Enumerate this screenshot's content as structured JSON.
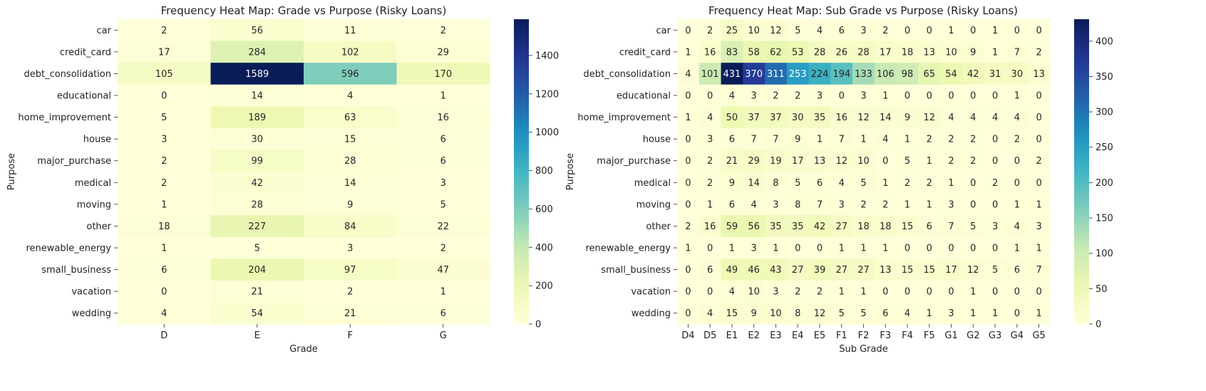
{
  "chart_data": [
    {
      "type": "heatmap",
      "title": "Frequency Heat Map: Grade vs Purpose (Risky Loans)",
      "xlabel": "Grade",
      "ylabel": "Purpose",
      "x": [
        "D",
        "E",
        "F",
        "G"
      ],
      "y": [
        "car",
        "credit_card",
        "debt_consolidation",
        "educational",
        "home_improvement",
        "house",
        "major_purchase",
        "medical",
        "moving",
        "other",
        "renewable_energy",
        "small_business",
        "vacation",
        "wedding"
      ],
      "values": [
        [
          2,
          56,
          11,
          2
        ],
        [
          17,
          284,
          102,
          29
        ],
        [
          105,
          1589,
          596,
          170
        ],
        [
          0,
          14,
          4,
          1
        ],
        [
          5,
          189,
          63,
          16
        ],
        [
          3,
          30,
          15,
          6
        ],
        [
          2,
          99,
          28,
          6
        ],
        [
          2,
          42,
          14,
          3
        ],
        [
          1,
          28,
          9,
          5
        ],
        [
          18,
          227,
          84,
          22
        ],
        [
          1,
          5,
          3,
          2
        ],
        [
          6,
          204,
          97,
          47
        ],
        [
          0,
          21,
          2,
          1
        ],
        [
          4,
          54,
          21,
          6
        ]
      ],
      "vmin": 0,
      "vmax": 1589,
      "colorbar_ticks": [
        0,
        200,
        400,
        600,
        800,
        1000,
        1200,
        1400
      ],
      "colormap": "YlGnBu"
    },
    {
      "type": "heatmap",
      "title": "Frequency Heat Map: Sub Grade vs Purpose (Risky Loans)",
      "xlabel": "Sub Grade",
      "ylabel": "Purpose",
      "x": [
        "D4",
        "D5",
        "E1",
        "E2",
        "E3",
        "E4",
        "E5",
        "F1",
        "F2",
        "F3",
        "F4",
        "F5",
        "G1",
        "G2",
        "G3",
        "G4",
        "G5"
      ],
      "y": [
        "car",
        "credit_card",
        "debt_consolidation",
        "educational",
        "home_improvement",
        "house",
        "major_purchase",
        "medical",
        "moving",
        "other",
        "renewable_energy",
        "small_business",
        "vacation",
        "wedding"
      ],
      "values": [
        [
          0,
          2,
          25,
          10,
          12,
          5,
          4,
          6,
          3,
          2,
          0,
          0,
          1,
          0,
          1,
          0,
          0
        ],
        [
          1,
          16,
          83,
          58,
          62,
          53,
          28,
          26,
          28,
          17,
          18,
          13,
          10,
          9,
          1,
          7,
          2
        ],
        [
          4,
          101,
          431,
          370,
          311,
          253,
          224,
          194,
          133,
          106,
          98,
          65,
          54,
          42,
          31,
          30,
          13
        ],
        [
          0,
          0,
          4,
          3,
          2,
          2,
          3,
          0,
          3,
          1,
          0,
          0,
          0,
          0,
          0,
          1,
          0
        ],
        [
          1,
          4,
          50,
          37,
          37,
          30,
          35,
          16,
          12,
          14,
          9,
          12,
          4,
          4,
          4,
          4,
          0
        ],
        [
          0,
          3,
          6,
          7,
          7,
          9,
          1,
          7,
          1,
          4,
          1,
          2,
          2,
          2,
          0,
          2,
          0
        ],
        [
          0,
          2,
          21,
          29,
          19,
          17,
          13,
          12,
          10,
          0,
          5,
          1,
          2,
          2,
          0,
          0,
          2
        ],
        [
          0,
          2,
          9,
          14,
          8,
          5,
          6,
          4,
          5,
          1,
          2,
          2,
          1,
          0,
          2,
          0,
          0
        ],
        [
          0,
          1,
          6,
          4,
          3,
          8,
          7,
          3,
          2,
          2,
          1,
          1,
          3,
          0,
          0,
          1,
          1
        ],
        [
          2,
          16,
          59,
          56,
          35,
          35,
          42,
          27,
          18,
          18,
          15,
          6,
          7,
          5,
          3,
          4,
          3
        ],
        [
          1,
          0,
          1,
          3,
          1,
          0,
          0,
          1,
          1,
          1,
          0,
          0,
          0,
          0,
          0,
          1,
          1
        ],
        [
          0,
          6,
          49,
          46,
          43,
          27,
          39,
          27,
          27,
          13,
          15,
          15,
          17,
          12,
          5,
          6,
          7
        ],
        [
          0,
          0,
          4,
          10,
          3,
          2,
          2,
          1,
          1,
          0,
          0,
          0,
          0,
          1,
          0,
          0,
          0
        ],
        [
          0,
          4,
          15,
          9,
          10,
          8,
          12,
          5,
          5,
          6,
          4,
          1,
          3,
          1,
          1,
          0,
          1
        ]
      ],
      "vmin": 0,
      "vmax": 431,
      "colorbar_ticks": [
        0,
        50,
        100,
        150,
        200,
        250,
        300,
        350,
        400
      ],
      "colormap": "YlGnBu"
    }
  ]
}
